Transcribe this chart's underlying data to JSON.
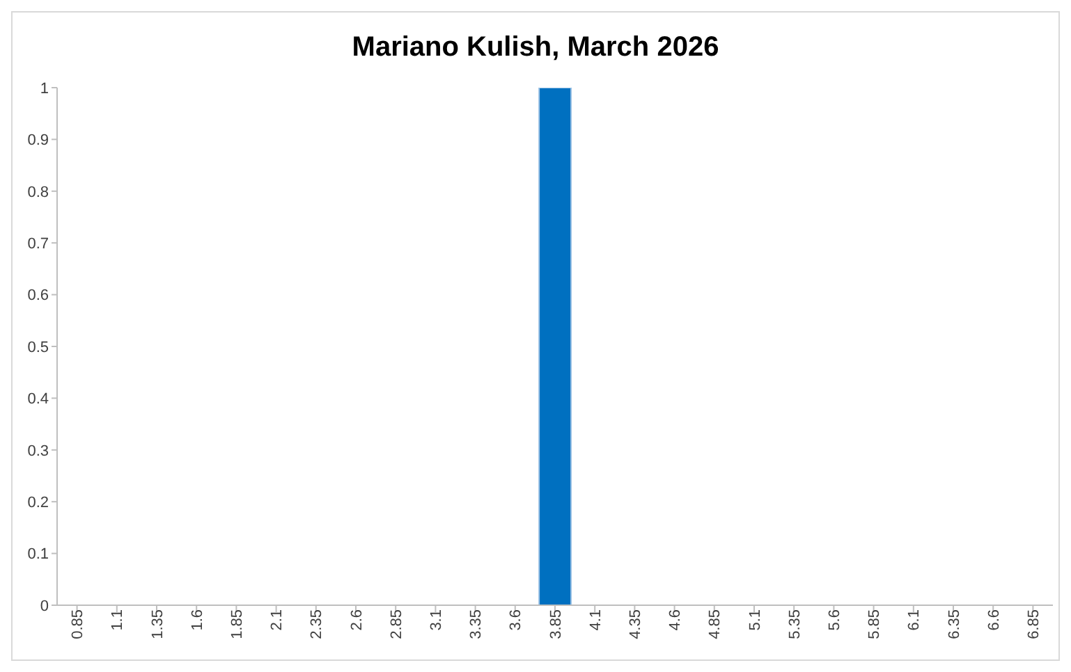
{
  "chart_data": {
    "type": "bar",
    "title": "Mariano Kulish, March 2026",
    "categories": [
      "0.85",
      "1.1",
      "1.35",
      "1.6",
      "1.85",
      "2.1",
      "2.35",
      "2.6",
      "2.85",
      "3.1",
      "3.35",
      "3.6",
      "3.85",
      "4.1",
      "4.35",
      "4.6",
      "4.85",
      "5.1",
      "5.35",
      "5.6",
      "5.85",
      "6.1",
      "6.35",
      "6.6",
      "6.85"
    ],
    "values": [
      0,
      0,
      0,
      0,
      0,
      0,
      0,
      0,
      0,
      0,
      0,
      0,
      1,
      0,
      0,
      0,
      0,
      0,
      0,
      0,
      0,
      0,
      0,
      0,
      0
    ],
    "color": "#0070c0",
    "ylim": [
      0,
      1
    ],
    "yticks": [
      0,
      0.1,
      0.2,
      0.3,
      0.4,
      0.5,
      0.6,
      0.7,
      0.8,
      0.9,
      1
    ],
    "grid": false
  }
}
